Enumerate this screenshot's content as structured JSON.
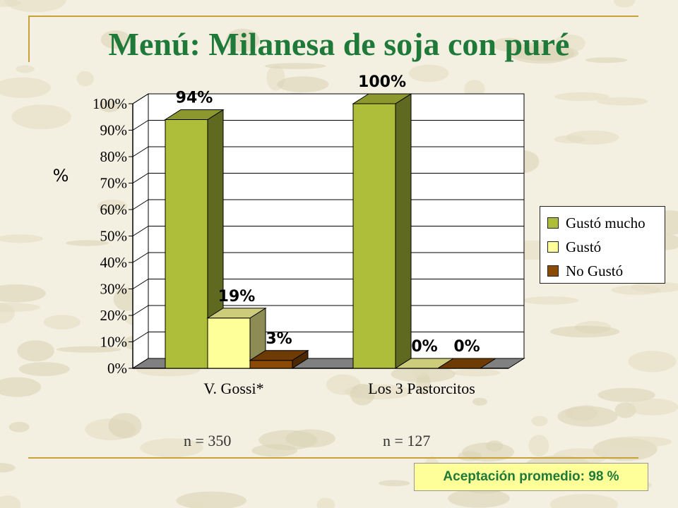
{
  "slide": {
    "title": "Menú: Milanesa de soja con puré",
    "y_unit_label": "%",
    "n_labels": [
      "n = 350",
      "n = 127"
    ],
    "footer": "Aceptación promedio: 98 %"
  },
  "colors": {
    "title": "#1f7a3a",
    "gusto_mucho": "#afbe3a",
    "gusto": "#ffff99",
    "no_gusto": "#8b4a05",
    "floor": "#808080",
    "footer_bg": "#ffff99"
  },
  "chart_data": {
    "type": "bar",
    "style": "3d-clustered",
    "categories": [
      "V. Gossi*",
      "Los 3 Pastorcitos"
    ],
    "series": [
      {
        "name": "Gustó mucho",
        "values": [
          94,
          100
        ],
        "labels": [
          "94%",
          "100%"
        ],
        "color": "#afbe3a"
      },
      {
        "name": "Gustó",
        "values": [
          19,
          0
        ],
        "labels": [
          "19%",
          "0%"
        ],
        "color": "#ffff99"
      },
      {
        "name": "No Gustó",
        "values": [
          3,
          0
        ],
        "labels": [
          "3%",
          "0%"
        ],
        "color": "#8b4a05"
      }
    ],
    "ylabel": "%",
    "ylim": [
      0,
      100
    ],
    "yticks": [
      "0%",
      "10%",
      "20%",
      "30%",
      "40%",
      "50%",
      "60%",
      "70%",
      "80%",
      "90%",
      "100%"
    ],
    "grid": true,
    "legend": "right"
  }
}
